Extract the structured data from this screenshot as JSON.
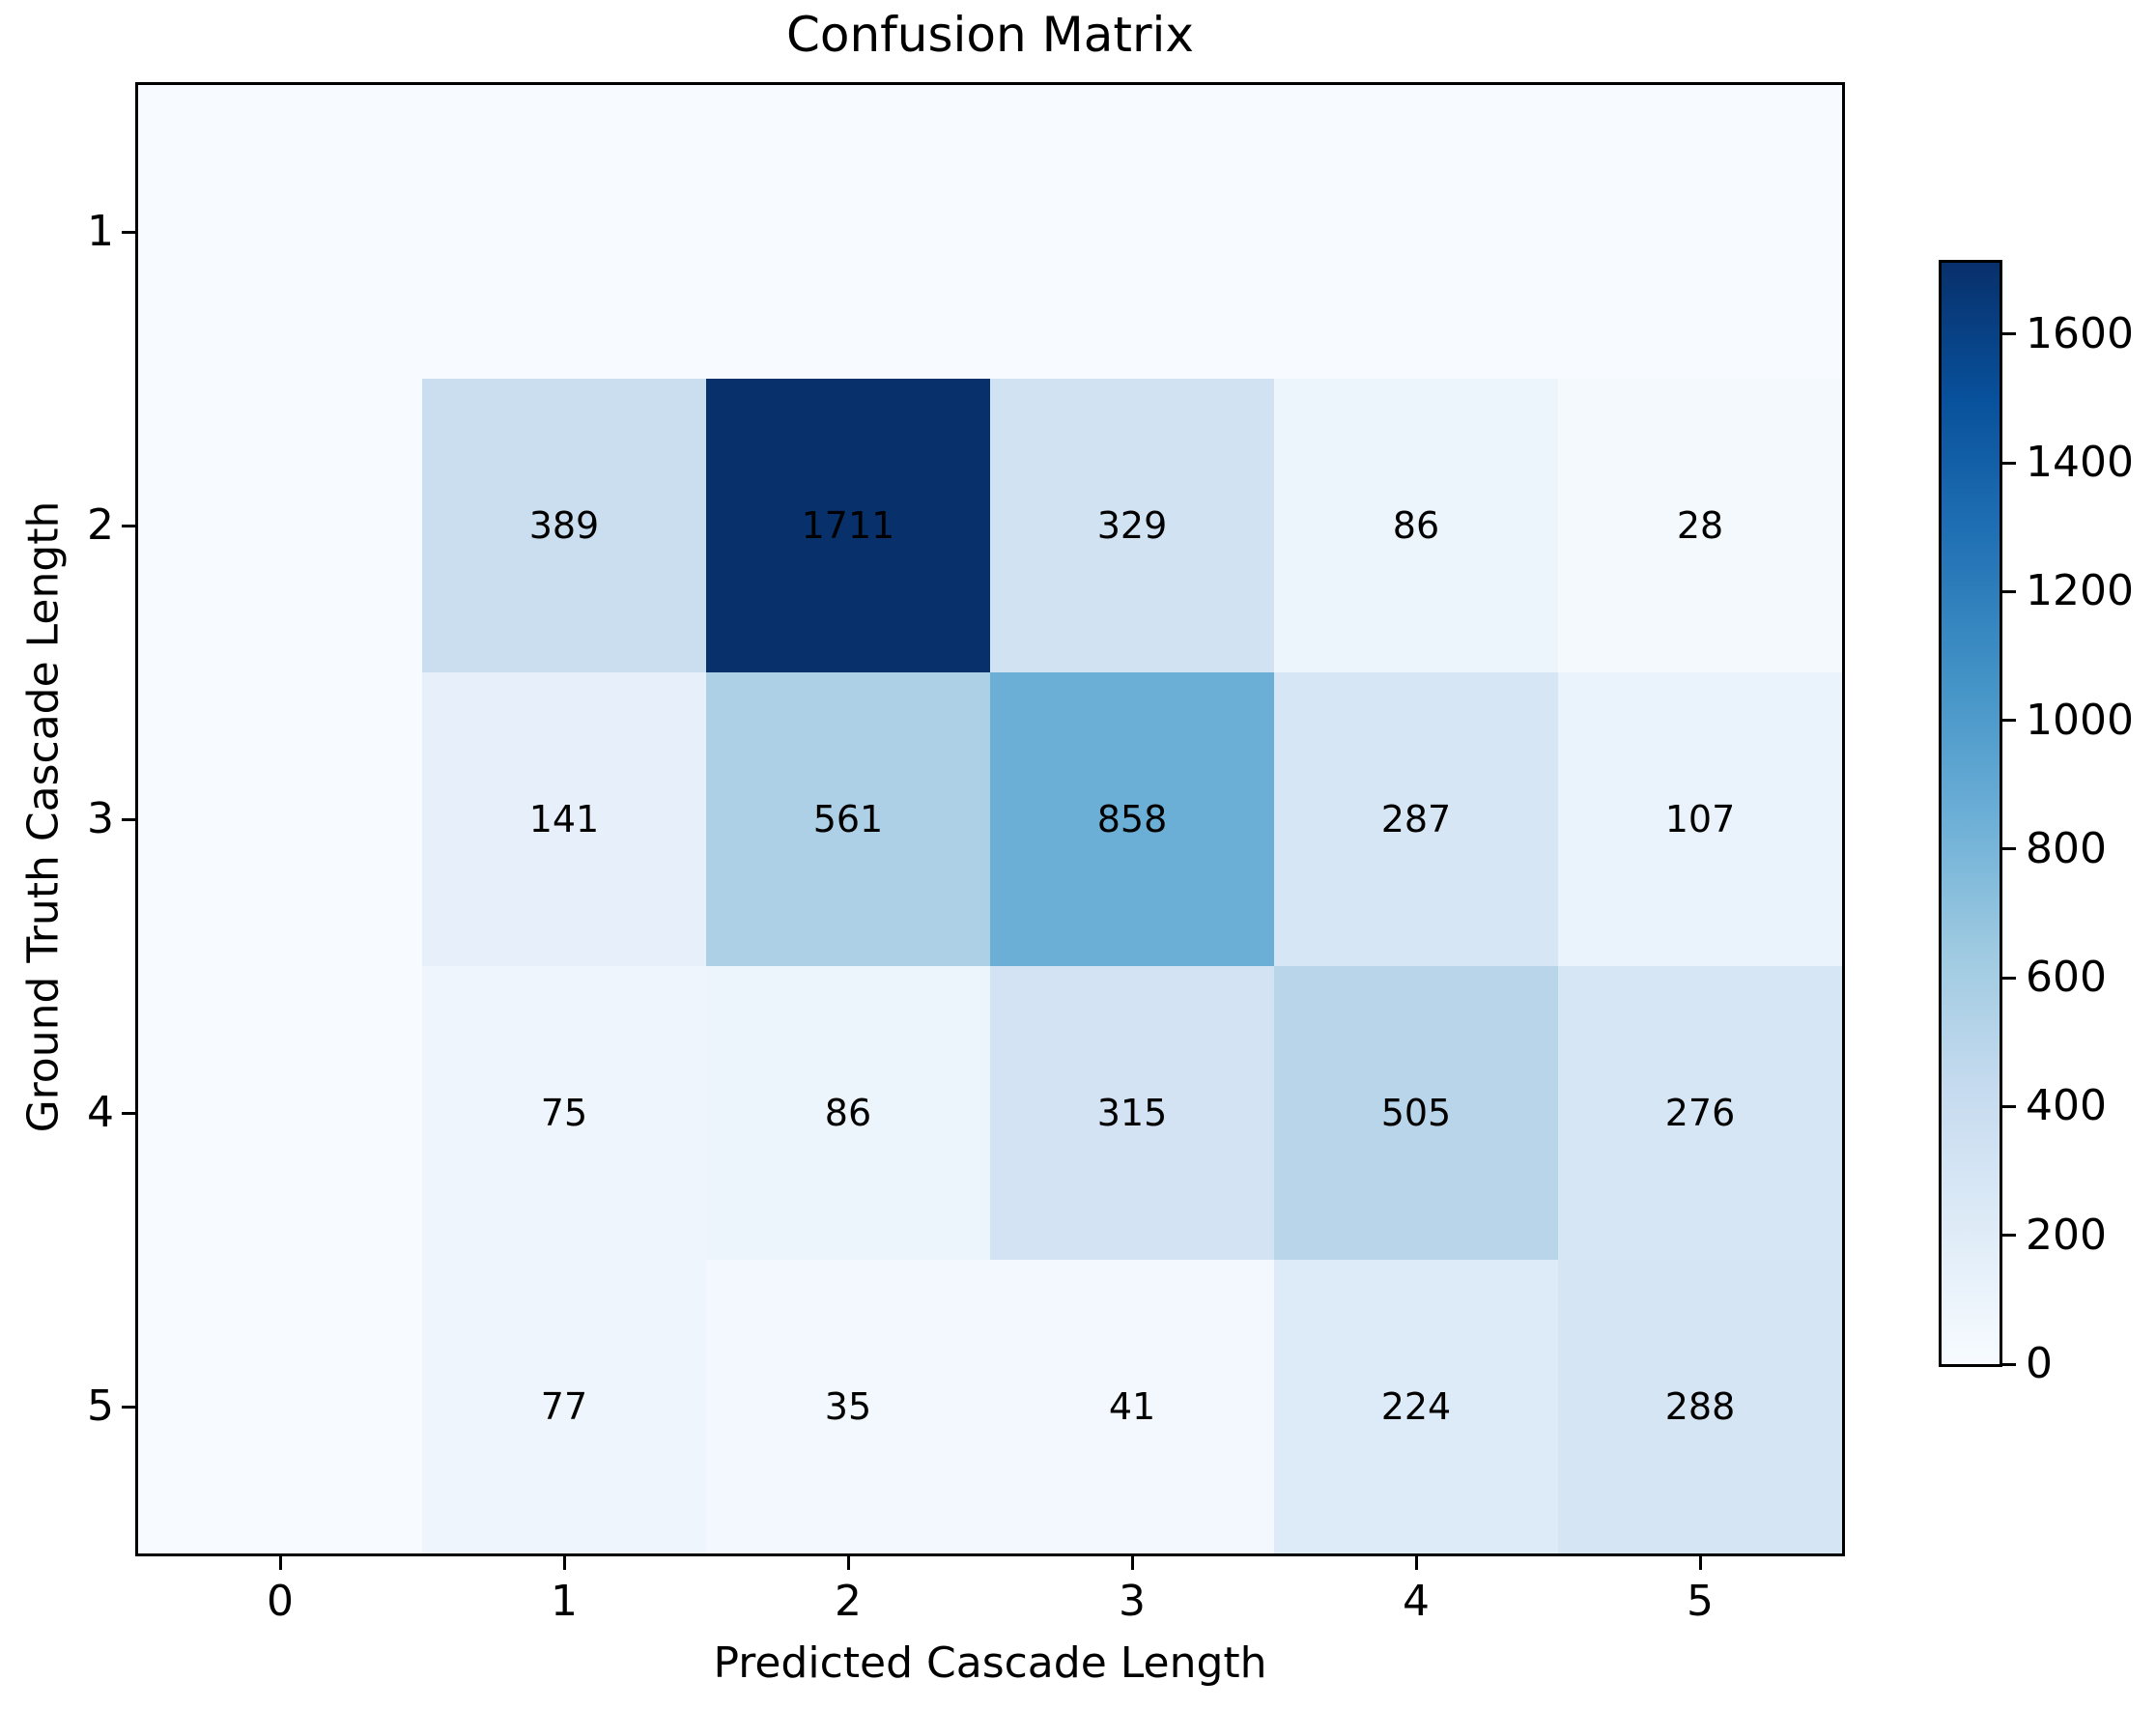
{
  "chart_data": {
    "type": "heatmap",
    "title": "Confusion Matrix",
    "xlabel": "Predicted Cascade Length",
    "ylabel": "Ground Truth Cascade Length",
    "x_tick_labels": [
      "0",
      "1",
      "2",
      "3",
      "4",
      "5"
    ],
    "y_tick_labels": [
      "1",
      "2",
      "3",
      "4",
      "5"
    ],
    "matrix": [
      [
        0,
        0,
        0,
        0,
        0,
        0
      ],
      [
        0,
        389,
        1711,
        329,
        86,
        28
      ],
      [
        0,
        141,
        561,
        858,
        287,
        107
      ],
      [
        0,
        75,
        86,
        315,
        505,
        276
      ],
      [
        0,
        77,
        35,
        41,
        224,
        288
      ]
    ],
    "annotations_hidden_for_zero": true,
    "vmin": 0,
    "vmax": 1711,
    "colormap": "Blues",
    "colormap_anchors": [
      "#f7fbff",
      "#deebf7",
      "#c6dbef",
      "#9ecae1",
      "#6baed6",
      "#4292c6",
      "#2171b5",
      "#08519c",
      "#08306b"
    ],
    "annotation_color": "#000000",
    "grid": false,
    "colorbar": {
      "position": "right",
      "tick_labels": [
        "0",
        "200",
        "400",
        "600",
        "800",
        "1000",
        "1200",
        "1400",
        "1600"
      ],
      "tick_values": [
        0,
        200,
        400,
        600,
        800,
        1000,
        1200,
        1400,
        1600
      ]
    }
  }
}
